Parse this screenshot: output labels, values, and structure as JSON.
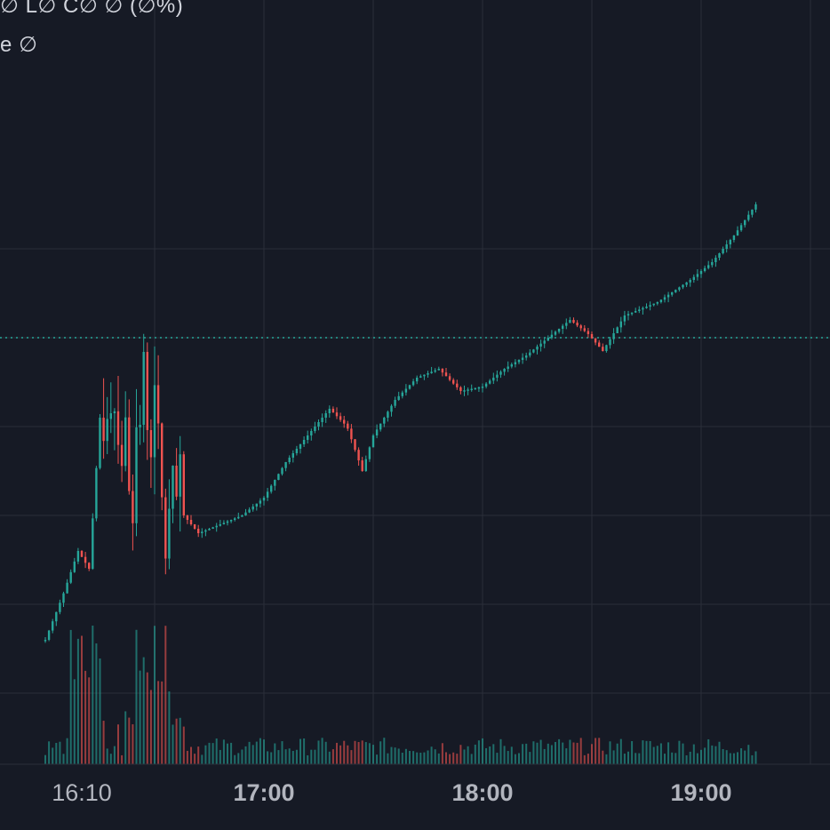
{
  "legend": {
    "ohlc_line": "∅ L∅ C∅ ∅ (∅%)",
    "volume_line": "e  ∅"
  },
  "colors": {
    "background": "#161a25",
    "grid": "#2a2e39",
    "up": "#26a69a",
    "down": "#ef5350",
    "last_price_line": "#26a69a",
    "axis_text": "#b2b5be"
  },
  "chart_data": {
    "type": "candlestick",
    "title": "",
    "xlabel": "",
    "ylabel": "",
    "x_ticks": [
      {
        "label": "16:10",
        "time": "16:10",
        "major": false
      },
      {
        "label": "17:00",
        "time": "17:00",
        "major": true
      },
      {
        "label": "18:00",
        "time": "18:00",
        "major": true
      },
      {
        "label": "19:00",
        "time": "19:00",
        "major": true
      }
    ],
    "x_range": [
      "15:56",
      "19:35"
    ],
    "price_range": [
      -2.6,
      10
    ],
    "grid": true,
    "last_price": 7,
    "series": [
      {
        "kind": "price",
        "values": [
          [
            16.0,
            0.0,
            0.2
          ],
          [
            16.08,
            0.6,
            1.2
          ],
          [
            16.15,
            1.4,
            2.2
          ],
          [
            16.2,
            2.2,
            1.8
          ],
          [
            16.25,
            3.0,
            5.2
          ],
          [
            16.3,
            2.6,
            6.2
          ],
          [
            16.35,
            3.4,
            4.8
          ],
          [
            16.4,
            5.6,
            4.0
          ],
          [
            16.45,
            4.8,
            5.8
          ],
          [
            16.5,
            5.8,
            5.0
          ],
          [
            16.55,
            5.0,
            2.4
          ],
          [
            16.6,
            2.4,
            3.2
          ],
          [
            16.7,
            2.9,
            2.6
          ],
          [
            16.8,
            2.6,
            2.8
          ],
          [
            16.9,
            2.7,
            3.0
          ],
          [
            17.0,
            3.0,
            3.4
          ],
          [
            17.1,
            3.4,
            4.2
          ],
          [
            17.2,
            4.2,
            4.8
          ],
          [
            17.3,
            4.8,
            5.4
          ],
          [
            17.38,
            5.6,
            5.0
          ],
          [
            17.45,
            5.0,
            4.0
          ],
          [
            17.5,
            4.1,
            4.8
          ],
          [
            17.6,
            4.8,
            5.6
          ],
          [
            17.7,
            5.6,
            6.1
          ],
          [
            17.8,
            6.1,
            6.3
          ],
          [
            17.9,
            6.2,
            5.8
          ],
          [
            18.0,
            5.6,
            5.9
          ],
          [
            18.1,
            5.9,
            6.3
          ],
          [
            18.2,
            6.3,
            6.6
          ],
          [
            18.3,
            6.6,
            7.0
          ],
          [
            18.4,
            7.0,
            7.4
          ],
          [
            18.48,
            7.8,
            7.1
          ],
          [
            18.55,
            7.1,
            6.7
          ],
          [
            18.65,
            6.8,
            7.5
          ],
          [
            18.8,
            7.5,
            7.8
          ],
          [
            18.95,
            7.8,
            8.3
          ],
          [
            19.05,
            8.4,
            8.7
          ],
          [
            19.15,
            8.8,
            9.3
          ],
          [
            19.25,
            9.3,
            10.0
          ]
        ]
      }
    ]
  }
}
